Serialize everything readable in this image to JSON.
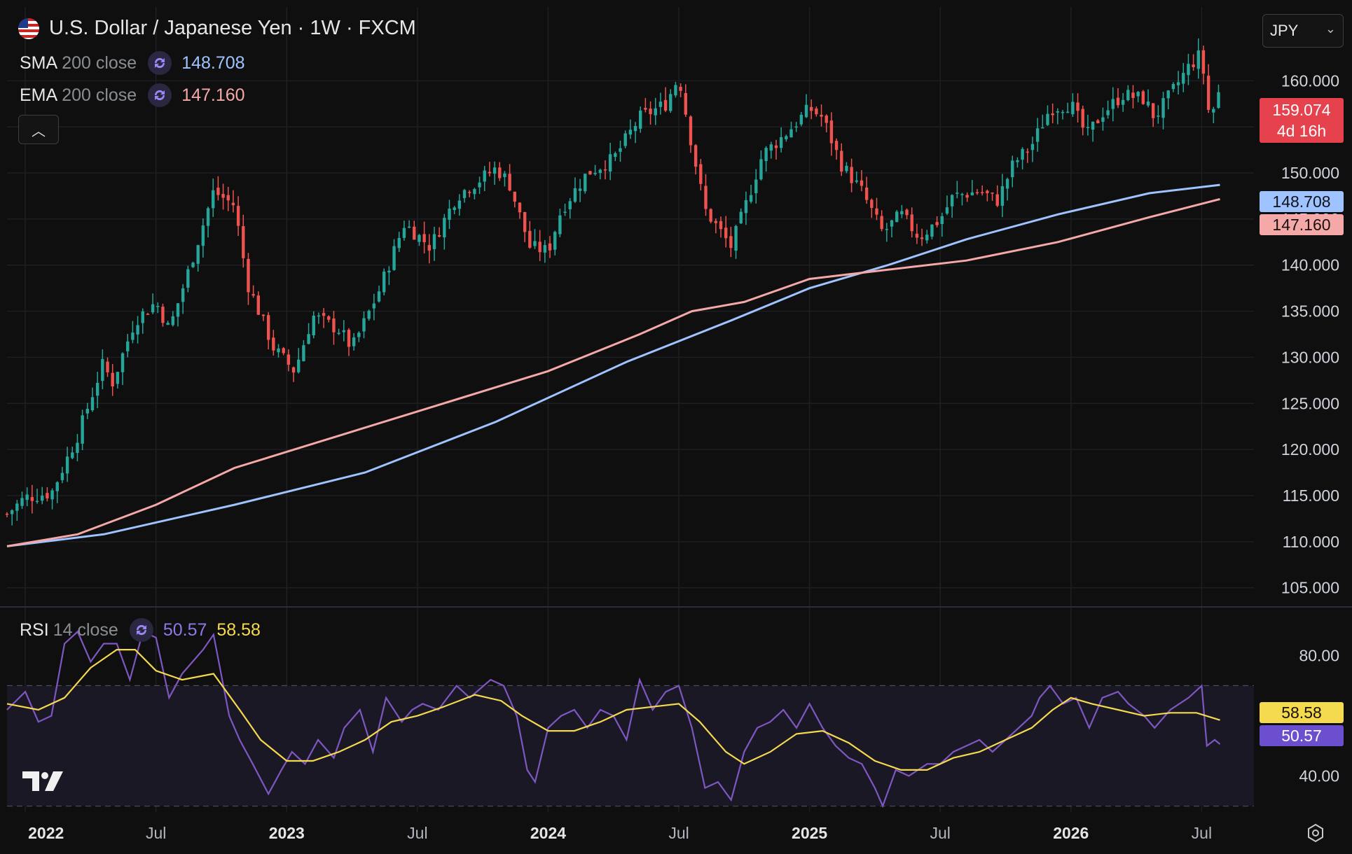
{
  "header": {
    "title": "U.S. Dollar / Japanese Yen · 1W · FXCM",
    "currency_select": "JPY",
    "icon": "us-flag-icon"
  },
  "legend": {
    "sma": {
      "name": "SMA",
      "args": "200 close",
      "value": "148.708",
      "color": "#9fc3ff"
    },
    "ema": {
      "name": "EMA",
      "args": "200 close",
      "value": "147.160",
      "color": "#f4a9a8"
    },
    "rsi": {
      "name": "RSI",
      "args": "14 close",
      "value": "50.57",
      "ma_value": "58.58",
      "color": "#7e57c2",
      "ma_color": "#f5d94e"
    }
  },
  "price_tags": {
    "last": "159.074",
    "countdown": "4d 16h",
    "sma": "148.708",
    "ema": "147.160",
    "rsi_ma": "58.58",
    "rsi": "50.57"
  },
  "colors": {
    "up": "#26a69a",
    "down": "#ef5350",
    "bg": "#0f0f0f",
    "grid": "#1e1f23"
  },
  "chart_data": [
    {
      "type": "candlestick",
      "title": "U.S. Dollar / Japanese Yen · 1W · FXCM",
      "ylim": [
        103,
        168
      ],
      "y_ticks": [
        "105.000",
        "110.000",
        "115.000",
        "120.000",
        "125.000",
        "130.000",
        "135.000",
        "140.000",
        "145.000",
        "150.000",
        "155.000",
        "160.000"
      ],
      "x_ticks": [
        "2022",
        "Jul",
        "2023",
        "Jul",
        "2024",
        "Jul",
        "2025",
        "Jul",
        "2026",
        "Jul"
      ],
      "x_tick_years": [
        2022.0,
        2022.5,
        2023.0,
        2023.5,
        2024.0,
        2024.5,
        2025.0,
        2025.5,
        2026.0,
        2026.5
      ],
      "x_range": [
        2021.93,
        2026.7
      ],
      "close_path": [
        [
          2021.93,
          113.0
        ],
        [
          2022.0,
          114.8
        ],
        [
          2022.1,
          115.3
        ],
        [
          2022.2,
          121.5
        ],
        [
          2022.3,
          129.5
        ],
        [
          2022.33,
          127.0
        ],
        [
          2022.42,
          134.0
        ],
        [
          2022.5,
          136.0
        ],
        [
          2022.55,
          133.0
        ],
        [
          2022.62,
          139.0
        ],
        [
          2022.72,
          148.0
        ],
        [
          2022.8,
          146.5
        ],
        [
          2022.85,
          138.0
        ],
        [
          2022.95,
          131.0
        ],
        [
          2023.03,
          128.5
        ],
        [
          2023.1,
          134.5
        ],
        [
          2023.2,
          133.0
        ],
        [
          2023.25,
          131.0
        ],
        [
          2023.35,
          137.0
        ],
        [
          2023.45,
          144.5
        ],
        [
          2023.55,
          142.0
        ],
        [
          2023.65,
          147.5
        ],
        [
          2023.8,
          150.5
        ],
        [
          2023.85,
          149.0
        ],
        [
          2023.93,
          142.0
        ],
        [
          2024.0,
          141.5
        ],
        [
          2024.05,
          146.0
        ],
        [
          2024.15,
          150.0
        ],
        [
          2024.25,
          151.5
        ],
        [
          2024.35,
          156.0
        ],
        [
          2024.45,
          157.5
        ],
        [
          2024.5,
          160.5
        ],
        [
          2024.55,
          153.0
        ],
        [
          2024.6,
          146.0
        ],
        [
          2024.7,
          142.0
        ],
        [
          2024.75,
          146.0
        ],
        [
          2024.82,
          152.0
        ],
        [
          2024.9,
          154.0
        ],
        [
          2025.0,
          157.0
        ],
        [
          2025.05,
          156.0
        ],
        [
          2025.12,
          151.0
        ],
        [
          2025.2,
          148.0
        ],
        [
          2025.28,
          143.5
        ],
        [
          2025.35,
          145.5
        ],
        [
          2025.42,
          143.0
        ],
        [
          2025.5,
          145.0
        ],
        [
          2025.55,
          147.5
        ],
        [
          2025.65,
          148.0
        ],
        [
          2025.72,
          147.0
        ],
        [
          2025.78,
          151.0
        ],
        [
          2025.85,
          153.0
        ],
        [
          2025.92,
          157.0
        ],
        [
          2026.0,
          157.5
        ],
        [
          2026.06,
          154.0
        ],
        [
          2026.12,
          156.5
        ],
        [
          2026.2,
          158.5
        ],
        [
          2026.28,
          158.0
        ],
        [
          2026.32,
          156.0
        ],
        [
          2026.38,
          158.5
        ],
        [
          2026.45,
          161.5
        ],
        [
          2026.5,
          163.0
        ],
        [
          2026.52,
          157.0
        ],
        [
          2026.54,
          156.5
        ],
        [
          2026.57,
          159.074
        ]
      ],
      "series": [
        {
          "name": "SMA 200 close",
          "points": [
            [
              2021.93,
              109.5
            ],
            [
              2022.3,
              110.8
            ],
            [
              2022.8,
              114.0
            ],
            [
              2023.3,
              117.5
            ],
            [
              2023.8,
              123.0
            ],
            [
              2024.3,
              129.5
            ],
            [
              2024.7,
              134.0
            ],
            [
              2025.0,
              137.5
            ],
            [
              2025.3,
              140.0
            ],
            [
              2025.6,
              142.8
            ],
            [
              2025.95,
              145.5
            ],
            [
              2026.3,
              147.8
            ],
            [
              2026.57,
              148.708
            ]
          ]
        },
        {
          "name": "EMA 200 close",
          "points": [
            [
              2021.93,
              109.5
            ],
            [
              2022.2,
              110.8
            ],
            [
              2022.5,
              114.0
            ],
            [
              2022.8,
              118.0
            ],
            [
              2023.2,
              121.5
            ],
            [
              2023.6,
              125.0
            ],
            [
              2024.0,
              128.5
            ],
            [
              2024.35,
              132.5
            ],
            [
              2024.55,
              135.0
            ],
            [
              2024.75,
              136.0
            ],
            [
              2025.0,
              138.5
            ],
            [
              2025.3,
              139.5
            ],
            [
              2025.6,
              140.5
            ],
            [
              2025.95,
              142.5
            ],
            [
              2026.3,
              145.2
            ],
            [
              2026.57,
              147.16
            ]
          ]
        }
      ]
    },
    {
      "type": "line",
      "title": "RSI 14 close",
      "ylim": [
        28,
        96
      ],
      "y_ticks": [
        "40.00",
        "80.00"
      ],
      "bands": [
        70,
        50,
        30
      ],
      "series": [
        {
          "name": "RSI",
          "points": [
            [
              2021.93,
              62
            ],
            [
              2022.0,
              68
            ],
            [
              2022.05,
              58
            ],
            [
              2022.1,
              60
            ],
            [
              2022.15,
              84
            ],
            [
              2022.2,
              88
            ],
            [
              2022.25,
              78
            ],
            [
              2022.3,
              84
            ],
            [
              2022.35,
              84
            ],
            [
              2022.4,
              72
            ],
            [
              2022.45,
              88
            ],
            [
              2022.5,
              86
            ],
            [
              2022.55,
              66
            ],
            [
              2022.6,
              74
            ],
            [
              2022.68,
              82
            ],
            [
              2022.72,
              87
            ],
            [
              2022.78,
              60
            ],
            [
              2022.82,
              52
            ],
            [
              2022.87,
              44
            ],
            [
              2022.93,
              34
            ],
            [
              2022.98,
              42
            ],
            [
              2023.02,
              48
            ],
            [
              2023.07,
              44
            ],
            [
              2023.12,
              52
            ],
            [
              2023.18,
              46
            ],
            [
              2023.22,
              56
            ],
            [
              2023.28,
              62
            ],
            [
              2023.33,
              48
            ],
            [
              2023.38,
              66
            ],
            [
              2023.44,
              58
            ],
            [
              2023.48,
              62
            ],
            [
              2023.52,
              64
            ],
            [
              2023.58,
              62
            ],
            [
              2023.65,
              70
            ],
            [
              2023.7,
              66
            ],
            [
              2023.78,
              72
            ],
            [
              2023.83,
              70
            ],
            [
              2023.88,
              60
            ],
            [
              2023.92,
              42
            ],
            [
              2023.95,
              38
            ],
            [
              2024.0,
              56
            ],
            [
              2024.05,
              60
            ],
            [
              2024.1,
              62
            ],
            [
              2024.15,
              56
            ],
            [
              2024.2,
              62
            ],
            [
              2024.25,
              60
            ],
            [
              2024.3,
              52
            ],
            [
              2024.35,
              72
            ],
            [
              2024.4,
              62
            ],
            [
              2024.45,
              68
            ],
            [
              2024.5,
              70
            ],
            [
              2024.55,
              56
            ],
            [
              2024.6,
              36
            ],
            [
              2024.65,
              38
            ],
            [
              2024.7,
              32
            ],
            [
              2024.75,
              48
            ],
            [
              2024.8,
              56
            ],
            [
              2024.85,
              58
            ],
            [
              2024.9,
              62
            ],
            [
              2024.95,
              56
            ],
            [
              2025.0,
              64
            ],
            [
              2025.05,
              56
            ],
            [
              2025.1,
              50
            ],
            [
              2025.15,
              46
            ],
            [
              2025.2,
              44
            ],
            [
              2025.25,
              36
            ],
            [
              2025.28,
              30
            ],
            [
              2025.33,
              42
            ],
            [
              2025.38,
              40
            ],
            [
              2025.45,
              44
            ],
            [
              2025.5,
              44
            ],
            [
              2025.55,
              48
            ],
            [
              2025.6,
              50
            ],
            [
              2025.65,
              52
            ],
            [
              2025.7,
              48
            ],
            [
              2025.75,
              52
            ],
            [
              2025.8,
              56
            ],
            [
              2025.85,
              60
            ],
            [
              2025.88,
              66
            ],
            [
              2025.92,
              70
            ],
            [
              2025.97,
              64
            ],
            [
              2026.02,
              66
            ],
            [
              2026.07,
              56
            ],
            [
              2026.12,
              66
            ],
            [
              2026.18,
              68
            ],
            [
              2026.22,
              64
            ],
            [
              2026.28,
              60
            ],
            [
              2026.32,
              56
            ],
            [
              2026.38,
              62
            ],
            [
              2026.45,
              66
            ],
            [
              2026.5,
              70
            ],
            [
              2026.52,
              50
            ],
            [
              2026.55,
              52
            ],
            [
              2026.57,
              50.57
            ]
          ]
        },
        {
          "name": "RSI MA",
          "points": [
            [
              2021.93,
              64
            ],
            [
              2022.05,
              62
            ],
            [
              2022.15,
              66
            ],
            [
              2022.25,
              76
            ],
            [
              2022.35,
              82
            ],
            [
              2022.42,
              82
            ],
            [
              2022.5,
              75
            ],
            [
              2022.6,
              72
            ],
            [
              2022.72,
              74
            ],
            [
              2022.82,
              62
            ],
            [
              2022.9,
              52
            ],
            [
              2023.0,
              45
            ],
            [
              2023.1,
              45
            ],
            [
              2023.2,
              48
            ],
            [
              2023.3,
              52
            ],
            [
              2023.4,
              58
            ],
            [
              2023.5,
              60
            ],
            [
              2023.6,
              63
            ],
            [
              2023.72,
              67
            ],
            [
              2023.82,
              65
            ],
            [
              2023.9,
              60
            ],
            [
              2024.0,
              55
            ],
            [
              2024.1,
              55
            ],
            [
              2024.2,
              58
            ],
            [
              2024.3,
              62
            ],
            [
              2024.4,
              63
            ],
            [
              2024.5,
              64
            ],
            [
              2024.58,
              58
            ],
            [
              2024.68,
              48
            ],
            [
              2024.75,
              44
            ],
            [
              2024.85,
              48
            ],
            [
              2024.95,
              54
            ],
            [
              2025.05,
              55
            ],
            [
              2025.15,
              51
            ],
            [
              2025.25,
              45
            ],
            [
              2025.35,
              42
            ],
            [
              2025.45,
              42
            ],
            [
              2025.55,
              46
            ],
            [
              2025.65,
              48
            ],
            [
              2025.75,
              52
            ],
            [
              2025.85,
              56
            ],
            [
              2025.93,
              62
            ],
            [
              2026.0,
              66
            ],
            [
              2026.08,
              64
            ],
            [
              2026.18,
              62
            ],
            [
              2026.28,
              60
            ],
            [
              2026.38,
              61
            ],
            [
              2026.48,
              61
            ],
            [
              2026.57,
              58.58
            ]
          ]
        }
      ]
    }
  ]
}
